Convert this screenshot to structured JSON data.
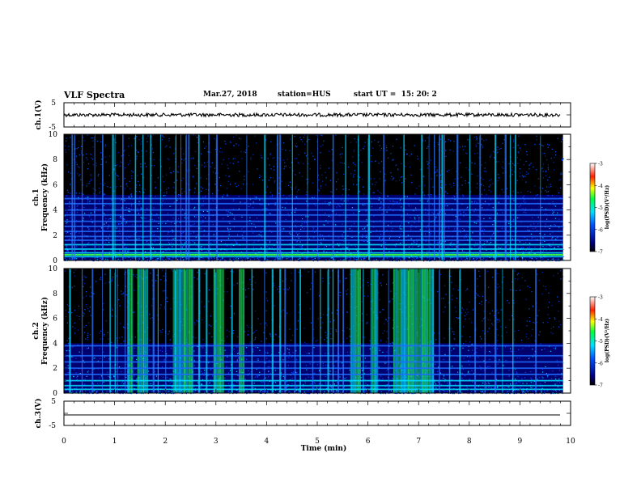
{
  "header": {
    "title": "VLF Spectra",
    "date": "Mar.27, 2018",
    "station": "station=HUS",
    "start_ut": "start UT =  15: 20: 2"
  },
  "chart_data": [
    {
      "type": "line",
      "panel": "ch1-waveform",
      "ylabel": "ch.1(V)",
      "yticks": [
        "5",
        "-5"
      ],
      "ylim": [
        -5,
        5
      ],
      "baseline": 0,
      "trace": "noisy"
    },
    {
      "type": "heatmap",
      "panel": "ch1-spectrogram",
      "ylabel_channel": "ch.1",
      "ylabel": "Frequency (kHz)",
      "yticks": [
        "0",
        "2",
        "4",
        "6",
        "8",
        "10"
      ],
      "ylim": [
        0,
        10
      ],
      "xlim": [
        0,
        9.85
      ],
      "colorbar": {
        "label": "log(PSD)(V²/Hz)",
        "ticks": [
          "-3",
          "-4",
          "-5",
          "-6",
          "-7"
        ],
        "range": [
          -7,
          -3
        ]
      },
      "sferic_times_min": [
        0.15,
        0.2,
        0.35,
        0.6,
        0.75,
        0.95,
        1.0,
        1.15,
        1.4,
        1.55,
        1.7,
        1.9,
        2.2,
        2.3,
        2.4,
        2.45,
        2.65,
        2.85,
        3.0,
        3.6,
        3.95,
        4.2,
        4.25,
        4.5,
        4.8,
        5.0,
        5.3,
        5.55,
        5.8,
        6.0,
        6.3,
        6.7,
        7.05,
        7.2,
        7.3,
        7.4,
        7.45,
        7.5,
        7.75,
        8.0,
        8.2,
        8.5,
        8.7,
        8.8,
        8.9,
        9.4
      ],
      "band_khz": [
        0.3,
        0.6,
        0.9,
        1.25,
        1.6,
        1.9,
        2.3,
        2.7,
        3.1,
        3.6,
        4.0,
        4.5,
        4.9
      ]
    },
    {
      "type": "heatmap",
      "panel": "ch2-spectrogram",
      "ylabel_channel": "ch.2",
      "ylabel": "Frequency (kHz)",
      "yticks": [
        "0",
        "2",
        "4",
        "6",
        "8",
        "10"
      ],
      "ylim": [
        0,
        10
      ],
      "xlim": [
        0,
        9.85
      ],
      "colorbar": {
        "label": "log(PSD)(V²/Hz)",
        "ticks": [
          "-3",
          "-4",
          "-5",
          "-6",
          "-7"
        ],
        "range": [
          -7,
          -3
        ]
      },
      "dense_spans_min": [
        [
          1.25,
          1.35
        ],
        [
          1.45,
          1.65
        ],
        [
          2.15,
          2.55
        ],
        [
          2.95,
          3.15
        ],
        [
          3.45,
          3.55
        ],
        [
          5.65,
          5.85
        ],
        [
          6.05,
          6.2
        ],
        [
          6.5,
          7.3
        ]
      ],
      "sferic_times_min": [
        0.1,
        0.35,
        0.55,
        0.75,
        0.9,
        1.0,
        1.05,
        1.2,
        1.75,
        1.85,
        2.0,
        2.65,
        2.8,
        3.3,
        3.7,
        3.95,
        4.1,
        4.25,
        4.35,
        4.55,
        4.65,
        4.9,
        5.05,
        5.2,
        5.3,
        5.4,
        5.5,
        5.9,
        6.4,
        7.4,
        7.6,
        7.8,
        8.1,
        8.3,
        8.5,
        8.65,
        8.85,
        9.3
      ],
      "band_khz": [
        0.3,
        0.6,
        1.0,
        1.5,
        2.0,
        2.5,
        3.0,
        3.8
      ]
    },
    {
      "type": "line",
      "panel": "ch3-waveform",
      "ylabel": "ch.3(V)",
      "yticks": [
        "5",
        "-5"
      ],
      "ylim": [
        -5,
        5
      ],
      "baseline": 0,
      "trace": "flat",
      "xlabel": "Time (min)",
      "xticks": [
        "0",
        "1",
        "2",
        "3",
        "4",
        "5",
        "6",
        "7",
        "8",
        "9",
        "10"
      ],
      "xlim": [
        0,
        10
      ]
    }
  ]
}
